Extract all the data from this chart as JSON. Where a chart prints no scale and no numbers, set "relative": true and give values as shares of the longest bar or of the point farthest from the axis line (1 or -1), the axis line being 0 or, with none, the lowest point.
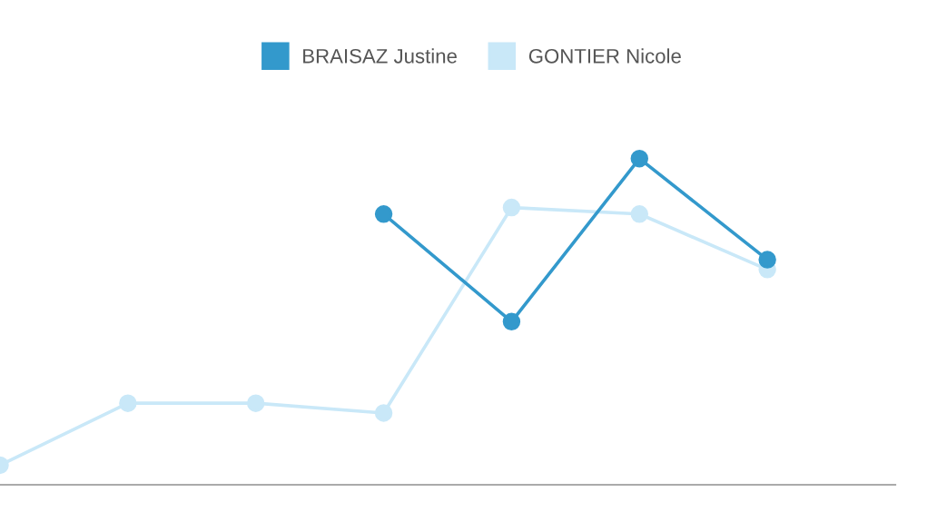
{
  "chart_data": {
    "type": "line",
    "relative": true,
    "categories": [
      null,
      null,
      null,
      null,
      null,
      null,
      null
    ],
    "series": [
      {
        "name": "BRAISAZ Justine",
        "color": "#3399cc",
        "values": [
          null,
          null,
          null,
          0.83,
          0.5,
          1.0,
          0.69
        ]
      },
      {
        "name": "GONTIER Nicole",
        "color": "#c9e8f8",
        "values": [
          0.06,
          0.25,
          0.25,
          0.22,
          0.85,
          0.83,
          0.66
        ]
      }
    ],
    "marker": "circle",
    "line_style": "solid",
    "legend": "top",
    "grid": false
  }
}
